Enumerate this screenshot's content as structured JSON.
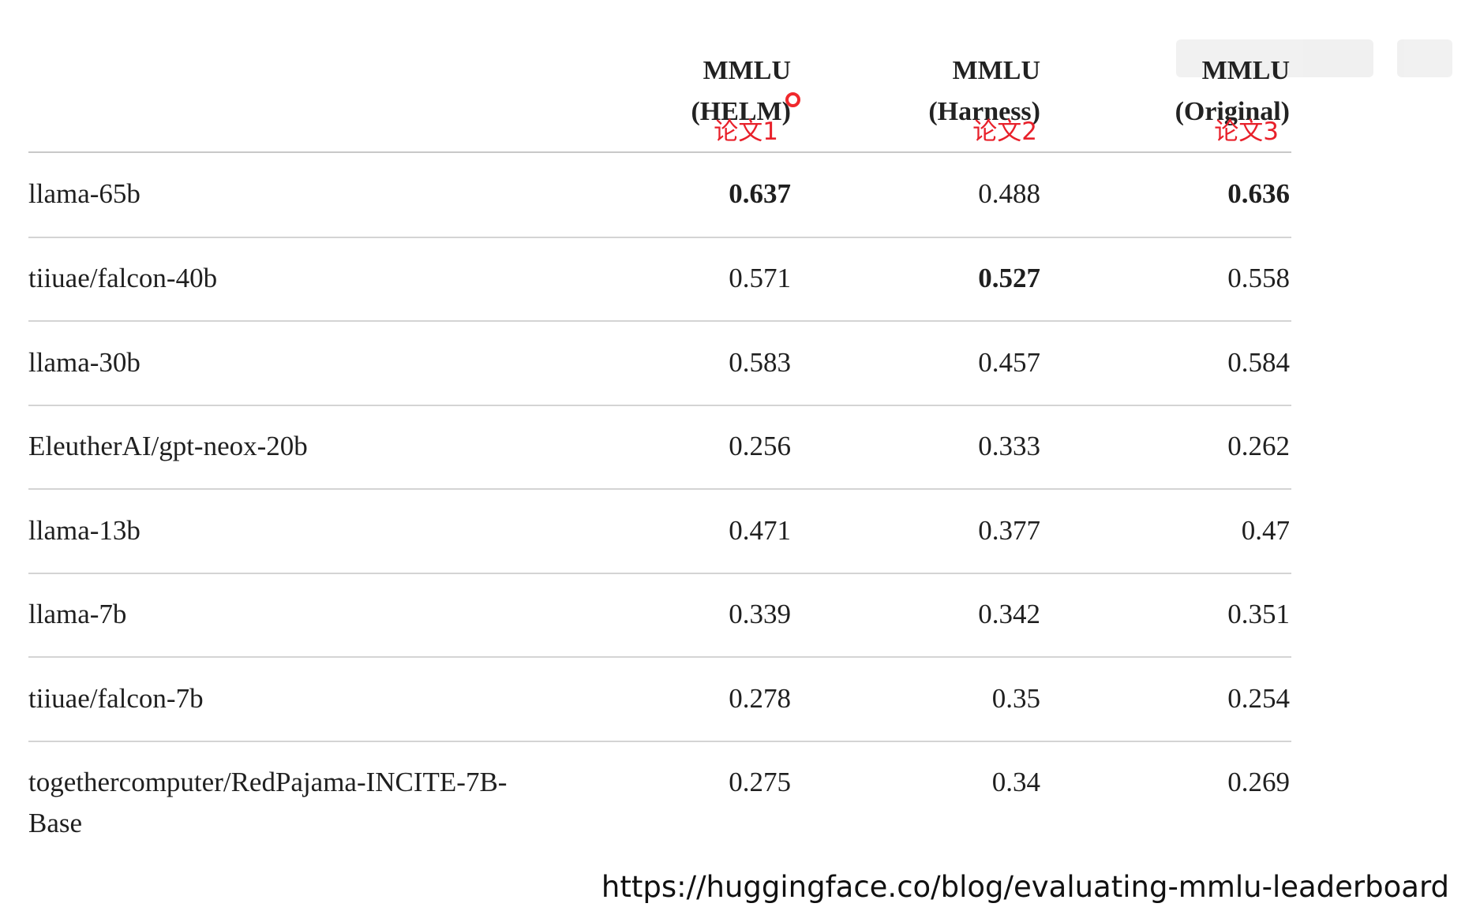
{
  "table": {
    "columns": [
      {
        "line1": "MMLU",
        "line2": "(HELM)",
        "annotation": "论文1"
      },
      {
        "line1": "MMLU",
        "line2": "(Harness)",
        "annotation": "论文2"
      },
      {
        "line1": "MMLU",
        "line2": "(Original)",
        "annotation": "论文3"
      }
    ],
    "rows": [
      {
        "model": [
          "llama-65b"
        ],
        "values": [
          "0.637",
          "0.488",
          "0.636"
        ],
        "bold": [
          true,
          false,
          true
        ]
      },
      {
        "model": [
          "tiiuae/falcon-40b"
        ],
        "values": [
          "0.571",
          "0.527",
          "0.558"
        ],
        "bold": [
          false,
          true,
          false
        ]
      },
      {
        "model": [
          "llama-30b"
        ],
        "values": [
          "0.583",
          "0.457",
          "0.584"
        ],
        "bold": [
          false,
          false,
          false
        ]
      },
      {
        "model": [
          "EleutherAI/gpt-neox-20b"
        ],
        "values": [
          "0.256",
          "0.333",
          "0.262"
        ],
        "bold": [
          false,
          false,
          false
        ]
      },
      {
        "model": [
          "llama-13b"
        ],
        "values": [
          "0.471",
          "0.377",
          "0.47"
        ],
        "bold": [
          false,
          false,
          false
        ]
      },
      {
        "model": [
          "llama-7b"
        ],
        "values": [
          "0.339",
          "0.342",
          "0.351"
        ],
        "bold": [
          false,
          false,
          false
        ]
      },
      {
        "model": [
          "tiiuae/falcon-7b"
        ],
        "values": [
          "0.278",
          "0.35",
          "0.254"
        ],
        "bold": [
          false,
          false,
          false
        ]
      },
      {
        "model": [
          "togethercomputer/RedPajama-INCITE-7B-",
          "Base"
        ],
        "values": [
          "0.275",
          "0.34",
          "0.269"
        ],
        "bold": [
          false,
          false,
          false
        ]
      }
    ]
  },
  "source_url": "https://huggingface.co/blog/evaluating-mmlu-leaderboard",
  "colors": {
    "annotation": "#e8202a",
    "rule": "#d4d4d4",
    "text": "#1f1f1f"
  }
}
